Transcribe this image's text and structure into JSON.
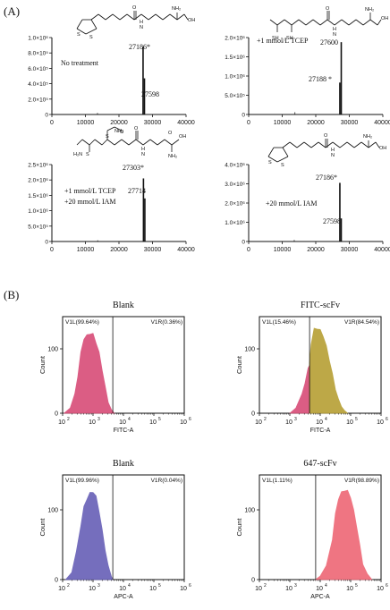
{
  "panel_labels": [
    "(A)",
    "(B)"
  ],
  "ms_panels": [
    {
      "annotations": [
        "No treatment"
      ],
      "peak_labels": [
        "27186*",
        "27598"
      ],
      "ytick_labels": [
        "0",
        "2.0×10⁵",
        "4.0×10⁵",
        "6.0×10⁵",
        "8.0×10⁵",
        "1.0×10⁶"
      ],
      "xtick_labels": [
        "0",
        "10000",
        "20000",
        "30000",
        "40000"
      ],
      "structure": "lipoic-acid-lysine",
      "structure_labels": [
        "S",
        "S",
        "O",
        "H",
        "N",
        "NH₂",
        "OH"
      ]
    },
    {
      "annotations": [
        "+1 mmol/L TCEP"
      ],
      "peak_labels": [
        "27600",
        "27188 *"
      ],
      "ytick_labels": [
        "0",
        "5.0×10⁵",
        "1.0×10⁶",
        "1.5×10⁶",
        "2.0×10⁶"
      ],
      "xtick_labels": [
        "0",
        "10000",
        "20000",
        "30000",
        "40000"
      ],
      "structure": "dihydrolipoyl-lysine",
      "structure_labels": [
        "SH",
        "SH",
        "O",
        "H",
        "N",
        "NH₂",
        "OH"
      ]
    },
    {
      "annotations": [
        "+1 mmol/L TCEP",
        "+20 mmol/L IAM"
      ],
      "peak_labels": [
        "27303*",
        "27714"
      ],
      "ytick_labels": [
        "0",
        "5.0×10⁵",
        "1.0×10⁶",
        "1.5×10⁶",
        "2.0×10⁶",
        "2.5×10⁶"
      ],
      "xtick_labels": [
        "0",
        "10000",
        "20000",
        "30000",
        "40000"
      ],
      "structure": "carbamidomethyl-lysine",
      "structure_labels": [
        "H₂N",
        "O",
        "S",
        "S",
        "NH₂",
        "O",
        "H",
        "N",
        "O",
        "OH",
        "NH₂"
      ]
    },
    {
      "annotations": [
        "+20 mmol/L IAM"
      ],
      "peak_labels": [
        "27186*",
        "27598"
      ],
      "ytick_labels": [
        "0",
        "1.0×10⁶",
        "2.0×10⁶",
        "3.0×10⁶",
        "4.0×10⁶"
      ],
      "xtick_labels": [
        "0",
        "10000",
        "20000",
        "30000",
        "40000"
      ],
      "structure": "lipoic-acid-lysine",
      "structure_labels": [
        "S",
        "S",
        "O",
        "H",
        "N",
        "NH₂",
        "OH"
      ]
    }
  ],
  "flow_panels": [
    {
      "title": "Blank",
      "gate_left": "V1L(99.64%)",
      "gate_right": "V1R(0.36%)",
      "ylabel": "Count",
      "xlabel": "FITC-A",
      "yticks": [
        "0",
        "100"
      ],
      "xtick_bases": [
        "10",
        "10",
        "10",
        "10",
        "10"
      ],
      "xtick_exps": [
        "2",
        "3",
        "4",
        "5",
        "6"
      ],
      "gate_left_color": "#8b2d6a",
      "gate_right_color": "#8a8a2a"
    },
    {
      "title": "FITC-scFv",
      "gate_left": "V1L(15.46%)",
      "gate_right": "V1R(84.54%)",
      "ylabel": "Count",
      "xlabel": "FITC-A",
      "yticks": [
        "0",
        "100"
      ],
      "xtick_bases": [
        "10",
        "10",
        "10",
        "10",
        "10"
      ],
      "xtick_exps": [
        "2",
        "3",
        "4",
        "5",
        "6"
      ],
      "gate_left_color": "#8b2d6a",
      "gate_right_color": "#8a8a2a"
    },
    {
      "title": "Blank",
      "gate_left": "V1L(99.96%)",
      "gate_right": "V1R(0.04%)",
      "ylabel": "Count",
      "xlabel": "APC-A",
      "yticks": [
        "0",
        "100"
      ],
      "xtick_bases": [
        "10",
        "10",
        "10",
        "10",
        "10"
      ],
      "xtick_exps": [
        "2",
        "3",
        "4",
        "5",
        "6"
      ],
      "gate_left_color": "#2f9fd0",
      "gate_right_color": "#e0703a"
    },
    {
      "title": "647-scFv",
      "gate_left": "V1L(1.11%)",
      "gate_right": "V1R(98.89%)",
      "ylabel": "Count",
      "xlabel": "APC-A",
      "yticks": [
        "0",
        "100"
      ],
      "xtick_bases": [
        "10",
        "10",
        "10",
        "10",
        "10"
      ],
      "xtick_exps": [
        "2",
        "3",
        "4",
        "5",
        "6"
      ],
      "gate_left_color": "#2f9fd0",
      "gate_right_color": "#e0703a"
    }
  ],
  "chart_data": [
    {
      "type": "bar",
      "chart": "mass-spectrum-no-treatment",
      "xlim": [
        0,
        40000
      ],
      "ylim": [
        0,
        1000000
      ],
      "x": [
        13593,
        27186,
        27598
      ],
      "values": [
        20000,
        880000,
        470000
      ]
    },
    {
      "type": "bar",
      "chart": "mass-spectrum-tcep",
      "xlim": [
        0,
        40000
      ],
      "ylim": [
        0,
        2000000
      ],
      "x": [
        13800,
        27188,
        27600
      ],
      "values": [
        60000,
        830000,
        1880000
      ]
    },
    {
      "type": "bar",
      "chart": "mass-spectrum-tcep-iam",
      "xlim": [
        0,
        40000
      ],
      "ylim": [
        0,
        2500000
      ],
      "x": [
        13650,
        27303,
        27714
      ],
      "values": [
        40000,
        2050000,
        1400000
      ]
    },
    {
      "type": "bar",
      "chart": "mass-spectrum-iam",
      "xlim": [
        0,
        40000
      ],
      "ylim": [
        0,
        4000000
      ],
      "x": [
        13593,
        27186,
        27598
      ],
      "values": [
        80000,
        3050000,
        1200000
      ]
    },
    {
      "type": "area",
      "chart": "flow-blank-fitc",
      "xlim": [
        2,
        6
      ],
      "ylim": [
        0,
        150
      ],
      "gate": 3.65,
      "series": [
        {
          "color": "#d9507a",
          "x": [
            2.05,
            2.25,
            2.4,
            2.5,
            2.6,
            2.7,
            2.8,
            2.9,
            3.0,
            3.1,
            3.2,
            3.3,
            3.4,
            3.5,
            3.6,
            3.7
          ],
          "values": [
            0,
            8,
            30,
            60,
            95,
            118,
            122,
            126,
            124,
            112,
            95,
            70,
            42,
            20,
            6,
            0
          ]
        }
      ]
    },
    {
      "type": "area",
      "chart": "flow-fitc-scfv",
      "xlim": [
        2,
        6
      ],
      "ylim": [
        0,
        150
      ],
      "gate": 3.65,
      "series": [
        {
          "color": "#d9507a",
          "x": [
            3.0,
            3.2,
            3.4,
            3.5,
            3.6,
            3.65
          ],
          "values": [
            0,
            8,
            30,
            50,
            70,
            78
          ]
        },
        {
          "color": "#b8a138",
          "x": [
            3.65,
            3.7,
            3.8,
            3.9,
            4.0,
            4.1,
            4.2,
            4.3,
            4.4,
            4.5,
            4.6,
            4.7,
            4.8,
            4.9
          ],
          "values": [
            78,
            110,
            132,
            134,
            130,
            122,
            105,
            85,
            62,
            40,
            22,
            10,
            4,
            0
          ]
        }
      ]
    },
    {
      "type": "area",
      "chart": "flow-blank-apc",
      "xlim": [
        2,
        6
      ],
      "ylim": [
        0,
        150
      ],
      "gate": 3.65,
      "series": [
        {
          "color": "#6a62b8",
          "x": [
            2.1,
            2.3,
            2.45,
            2.6,
            2.7,
            2.8,
            2.9,
            3.0,
            3.1,
            3.2,
            3.3,
            3.4,
            3.5,
            3.6,
            3.65
          ],
          "values": [
            0,
            10,
            40,
            80,
            105,
            118,
            125,
            128,
            120,
            100,
            72,
            45,
            20,
            5,
            0
          ]
        }
      ]
    },
    {
      "type": "area",
      "chart": "flow-647-scfv",
      "xlim": [
        2,
        6
      ],
      "ylim": [
        0,
        150
      ],
      "gate": 3.85,
      "series": [
        {
          "color": "#ee6a78",
          "x": [
            3.85,
            4.0,
            4.2,
            4.4,
            4.5,
            4.6,
            4.7,
            4.8,
            4.9,
            5.0,
            5.1,
            5.2,
            5.3,
            5.4,
            5.55,
            5.7
          ],
          "values": [
            0,
            5,
            20,
            60,
            95,
            118,
            126,
            130,
            128,
            120,
            100,
            78,
            50,
            25,
            8,
            0
          ]
        }
      ]
    }
  ]
}
